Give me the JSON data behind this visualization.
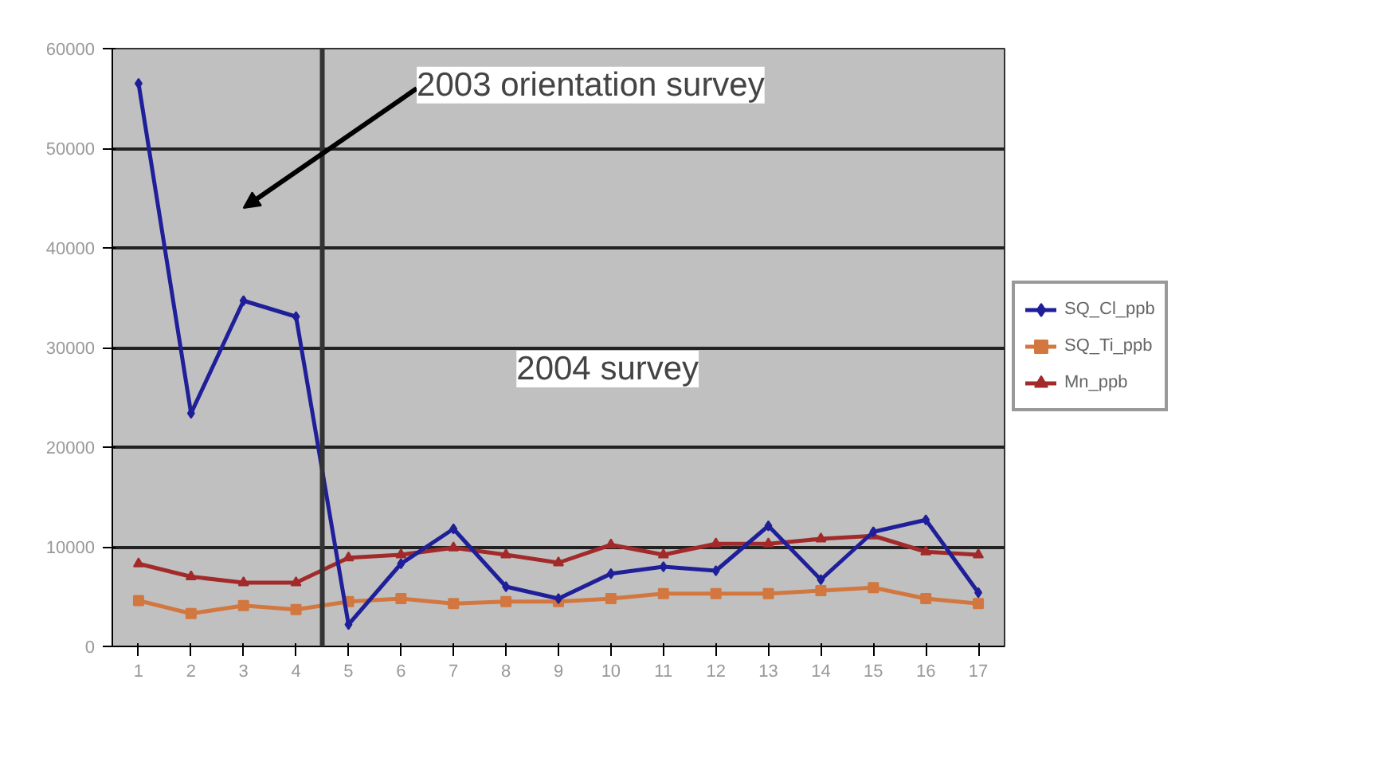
{
  "chart_data": {
    "type": "line",
    "x": [
      1,
      2,
      3,
      4,
      5,
      6,
      7,
      8,
      9,
      10,
      11,
      12,
      13,
      14,
      15,
      16,
      17
    ],
    "xlim": [
      0.5,
      17.5
    ],
    "xticks": [
      1,
      2,
      3,
      4,
      5,
      6,
      7,
      8,
      9,
      10,
      11,
      12,
      13,
      14,
      15,
      16,
      17
    ],
    "series": [
      {
        "name": "SQ_Cl_ppb",
        "color": "#1f1f9a",
        "marker": "diamond",
        "values": [
          56500,
          23400,
          34700,
          33100,
          2200,
          8300,
          11800,
          6000,
          4800,
          7300,
          8000,
          7600,
          12100,
          6700,
          11500,
          12700,
          5400
        ]
      },
      {
        "name": "SQ_Ti_ppb",
        "color": "#d2773f",
        "marker": "square",
        "values": [
          4600,
          3300,
          4100,
          3700,
          4500,
          4800,
          4300,
          4500,
          4500,
          4800,
          5300,
          5300,
          5300,
          5600,
          5900,
          4800,
          4300
        ]
      },
      {
        "name": "Mn_ppb",
        "color": "#a32a2a",
        "marker": "triangle",
        "values": [
          8300,
          7000,
          6400,
          6400,
          8900,
          9200,
          9900,
          9200,
          8400,
          10200,
          9200,
          10300,
          10300,
          10800,
          11100,
          9500,
          9200
        ]
      }
    ],
    "ylim": [
      0,
      60000
    ],
    "yticks": [
      0,
      10000,
      20000,
      30000,
      40000,
      50000,
      60000
    ],
    "grid": "y",
    "legend": "right",
    "ref_lines": [
      {
        "axis": "x",
        "value": 4.5,
        "label": null,
        "color": "#333333"
      }
    ],
    "annotations": [
      "2003 orientation survey",
      "2004 survey"
    ]
  }
}
